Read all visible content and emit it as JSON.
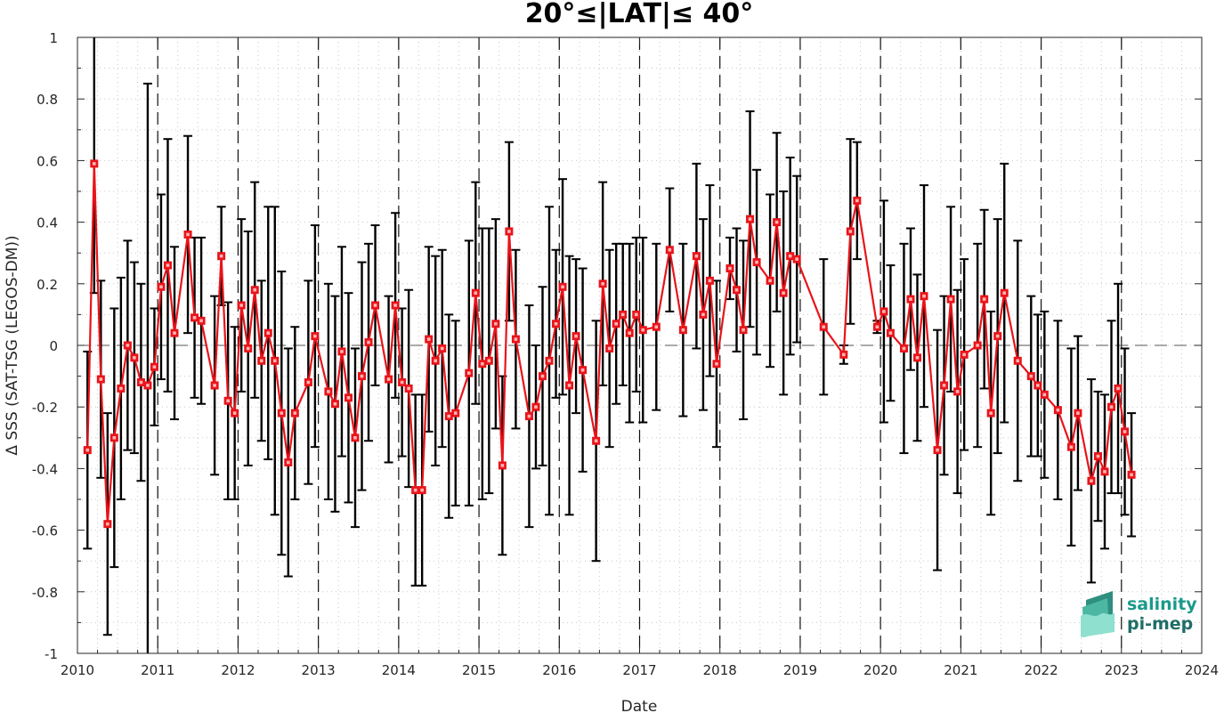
{
  "chart_data": {
    "type": "line",
    "title": "20°≤|LAT|≤ 40°",
    "xlabel": "Date",
    "ylabel": "Δ SSS (SAT-TSG (LEGOS-DM))",
    "xlim": [
      2010,
      2024
    ],
    "ylim": [
      -1,
      1
    ],
    "x_ticks": [
      "2010",
      "2011",
      "2012",
      "2013",
      "2014",
      "2015",
      "2016",
      "2017",
      "2018",
      "2019",
      "2020",
      "2021",
      "2022",
      "2023",
      "2024"
    ],
    "y_ticks": [
      "1",
      "0.8",
      "0.6",
      "0.4",
      "0.2",
      "0",
      "-0.2",
      "-0.4",
      "-0.6",
      "-0.8",
      "-1"
    ],
    "grid": "dotted",
    "year_dividers": "dashed vertical lines at each year",
    "zero_line": "dashed horizontal line at 0",
    "series_color": "#e8141a",
    "errorbar_color": "#000000",
    "marker": "square",
    "series": [
      {
        "x": [
          "2010-02",
          "2010-03",
          "2010-04",
          "2010-05",
          "2010-06",
          "2010-07",
          "2010-08",
          "2010-09",
          "2010-10",
          "2010-11",
          "2010-12",
          "2011-01",
          "2011-02",
          "2011-03",
          "2011-05",
          "2011-06",
          "2011-07",
          "2011-09",
          "2011-10",
          "2011-11",
          "2011-12",
          "2012-01",
          "2012-02",
          "2012-03",
          "2012-04",
          "2012-05",
          "2012-06",
          "2012-07",
          "2012-08",
          "2012-09",
          "2012-11",
          "2012-12",
          "2013-02",
          "2013-03",
          "2013-04",
          "2013-05",
          "2013-06",
          "2013-07",
          "2013-08",
          "2013-09",
          "2013-11",
          "2013-12",
          "2014-01",
          "2014-02",
          "2014-03",
          "2014-04",
          "2014-05",
          "2014-06",
          "2014-07",
          "2014-08",
          "2014-09",
          "2014-11",
          "2014-12",
          "2015-01",
          "2015-02",
          "2015-03",
          "2015-04",
          "2015-05",
          "2015-06",
          "2015-08",
          "2015-09",
          "2015-10",
          "2015-11",
          "2015-12",
          "2016-01",
          "2016-02",
          "2016-03",
          "2016-04",
          "2016-06",
          "2016-07",
          "2016-08",
          "2016-09",
          "2016-10",
          "2016-11",
          "2016-12",
          "2017-01",
          "2017-03",
          "2017-05",
          "2017-07",
          "2017-09",
          "2017-10",
          "2017-11",
          "2017-12",
          "2018-02",
          "2018-03",
          "2018-04",
          "2018-05",
          "2018-06",
          "2018-08",
          "2018-09",
          "2018-10",
          "2018-11",
          "2018-12",
          "2019-04",
          "2019-07",
          "2019-08",
          "2019-09",
          "2019-12",
          "2020-01",
          "2020-02",
          "2020-04",
          "2020-05",
          "2020-06",
          "2020-07",
          "2020-09",
          "2020-10",
          "2020-11",
          "2020-12",
          "2021-01",
          "2021-03",
          "2021-04",
          "2021-05",
          "2021-06",
          "2021-07",
          "2021-09",
          "2021-11",
          "2021-12",
          "2022-01",
          "2022-03",
          "2022-05",
          "2022-06",
          "2022-08",
          "2022-09",
          "2022-10",
          "2022-11",
          "2022-12",
          "2023-01",
          "2023-02"
        ],
        "y": [
          -0.34,
          0.59,
          -0.11,
          -0.58,
          -0.3,
          -0.14,
          0.0,
          -0.04,
          -0.12,
          -0.13,
          -0.07,
          0.19,
          0.26,
          0.04,
          0.36,
          0.09,
          0.08,
          -0.13,
          0.29,
          -0.18,
          -0.22,
          0.13,
          -0.01,
          0.18,
          -0.05,
          0.04,
          -0.05,
          -0.22,
          -0.38,
          -0.22,
          -0.12,
          0.03,
          -0.15,
          -0.19,
          -0.02,
          -0.17,
          -0.3,
          -0.1,
          0.01,
          0.13,
          -0.11,
          0.13,
          -0.12,
          -0.14,
          -0.47,
          -0.47,
          0.02,
          -0.05,
          -0.01,
          -0.23,
          -0.22,
          -0.09,
          0.17,
          -0.06,
          -0.05,
          0.07,
          -0.39,
          0.37,
          0.02,
          -0.23,
          -0.2,
          -0.1,
          -0.05,
          0.07,
          0.19,
          -0.13,
          0.03,
          -0.08,
          -0.31,
          0.2,
          -0.01,
          0.07,
          0.1,
          0.04,
          0.1,
          0.05,
          0.06,
          0.31,
          0.05,
          0.29,
          0.1,
          0.21,
          -0.06,
          0.25,
          0.18,
          0.05,
          0.41,
          0.27,
          0.21,
          0.4,
          0.17,
          0.29,
          0.28,
          0.06,
          -0.03,
          0.37,
          0.47,
          0.06,
          0.11,
          0.04,
          -0.01,
          0.15,
          -0.04,
          0.16,
          -0.34,
          -0.13,
          0.15,
          -0.15,
          -0.03,
          0.0,
          0.15,
          -0.22,
          0.03,
          0.17,
          -0.05,
          -0.1,
          -0.13,
          -0.16,
          -0.21,
          -0.33,
          -0.22,
          -0.44,
          -0.36,
          -0.41,
          -0.2,
          -0.14,
          -0.28,
          -0.42
        ],
        "err": [
          0.32,
          0.42,
          0.32,
          0.36,
          0.42,
          0.36,
          0.34,
          0.31,
          0.32,
          0.98,
          0.19,
          0.3,
          0.41,
          0.28,
          0.32,
          0.26,
          0.27,
          0.29,
          0.16,
          0.32,
          0.28,
          0.28,
          0.38,
          0.35,
          0.26,
          0.41,
          0.5,
          0.46,
          0.37,
          0.28,
          0.33,
          0.36,
          0.35,
          0.35,
          0.34,
          0.34,
          0.29,
          0.37,
          0.32,
          0.26,
          0.27,
          0.3,
          0.24,
          0.32,
          0.31,
          0.31,
          0.3,
          0.34,
          0.32,
          0.33,
          0.3,
          0.43,
          0.36,
          0.44,
          0.43,
          0.34,
          0.29,
          0.29,
          0.29,
          0.36,
          0.2,
          0.29,
          0.5,
          0.24,
          0.35,
          0.42,
          0.25,
          0.33,
          0.39,
          0.33,
          0.32,
          0.26,
          0.23,
          0.29,
          0.25,
          0.3,
          0.27,
          0.2,
          0.28,
          0.3,
          0.31,
          0.31,
          0.27,
          0.1,
          0.2,
          0.29,
          0.35,
          0.3,
          0.28,
          0.29,
          0.33,
          0.32,
          0.27,
          0.22,
          0.03,
          0.3,
          0.19,
          0.02,
          0.36,
          0.22,
          0.34,
          0.23,
          0.27,
          0.36,
          0.39,
          0.29,
          0.3,
          0.33,
          0.31,
          0.33,
          0.29,
          0.33,
          0.38,
          0.42,
          0.39,
          0.26,
          0.23,
          0.27,
          0.29,
          0.32,
          0.25,
          0.33,
          0.21,
          0.25,
          0.28,
          0.34,
          0.27,
          0.2
        ]
      }
    ]
  },
  "logo": {
    "line1": "salinity",
    "line2": "pi-mep",
    "colors": {
      "text": "#1a9a8a",
      "shape_dark": "#1f7a6e",
      "shape_light": "#7fd6c3"
    }
  }
}
